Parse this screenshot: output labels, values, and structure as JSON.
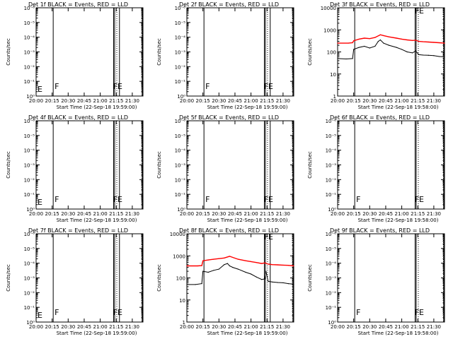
{
  "page": {
    "background": "#ffffff",
    "events_color": "#000000",
    "lld_color": "#ff0000"
  },
  "panels": [
    {
      "title": "Det 1f BLACK = Events, RED = LLD",
      "ylabel": "Counts/sec",
      "xlabel": "Start Time (22-Sep-18 19:59:00)",
      "yticks": [
        "10⁰",
        "10⁻¹",
        "10⁻²",
        "10⁻³",
        "10⁻⁴",
        "10⁻⁵",
        "10⁻⁶"
      ],
      "log_range": [
        0,
        -6
      ],
      "has_data": false,
      "markers": [
        "E",
        "F",
        "FE"
      ]
    },
    {
      "title": "Det 2f BLACK = Events, RED = LLD",
      "ylabel": "Counts/sec",
      "xlabel": "Start Time (22-Sep-18 19:59:00)",
      "yticks": [
        "10⁰",
        "10⁻¹",
        "10⁻²",
        "10⁻³",
        "10⁻⁴",
        "10⁻⁵",
        "10⁻⁶"
      ],
      "log_range": [
        0,
        -6
      ],
      "has_data": false,
      "markers": [
        "F",
        "FE"
      ]
    },
    {
      "title": "Det 3f BLACK = Events, RED = LLD",
      "ylabel": "Counts/sec",
      "xlabel": "Start Time (22-Sep-18 19:58:00)",
      "yticks": [
        "1",
        "10",
        "100",
        "1000",
        "10000"
      ],
      "log_range": [
        0,
        4
      ],
      "has_data": true,
      "markers": [
        "FE"
      ]
    },
    {
      "title": "Det 4f BLACK = Events, RED = LLD",
      "ylabel": "Counts/sec",
      "xlabel": "Start Time (22-Sep-18 19:59:00)",
      "yticks": [
        "10⁰",
        "10⁻¹",
        "10⁻²",
        "10⁻³",
        "10⁻⁴",
        "10⁻⁵",
        "10⁻⁶"
      ],
      "log_range": [
        0,
        -6
      ],
      "has_data": false,
      "markers": [
        "E",
        "F",
        "FE"
      ]
    },
    {
      "title": "Det 5f BLACK = Events, RED = LLD",
      "ylabel": "Counts/sec",
      "xlabel": "Start Time (22-Sep-18 19:59:00)",
      "yticks": [
        "10⁰",
        "10⁻¹",
        "10⁻²",
        "10⁻³",
        "10⁻⁴",
        "10⁻⁵",
        "10⁻⁶"
      ],
      "log_range": [
        0,
        -6
      ],
      "has_data": false,
      "markers": [
        "F",
        "FE"
      ]
    },
    {
      "title": "Det 6f BLACK = Events, RED = LLD",
      "ylabel": "Counts/sec",
      "xlabel": "Start Time (22-Sep-18 19:58:00)",
      "yticks": [
        "10⁰",
        "10⁻¹",
        "10⁻²",
        "10⁻³",
        "10⁻⁴",
        "10⁻⁵",
        "10⁻⁶"
      ],
      "log_range": [
        0,
        -6
      ],
      "has_data": false,
      "markers": [
        "F",
        "FE"
      ]
    },
    {
      "title": "Det 7f BLACK = Events, RED = LLD",
      "ylabel": "Counts/sec",
      "xlabel": "Start Time (22-Sep-18 19:59:00)",
      "yticks": [
        "10⁰",
        "10⁻¹",
        "10⁻²",
        "10⁻³",
        "10⁻⁴",
        "10⁻⁵",
        "10⁻⁶"
      ],
      "log_range": [
        0,
        -6
      ],
      "has_data": false,
      "markers": [
        "E",
        "F",
        "FE"
      ]
    },
    {
      "title": "Det 8f BLACK = Events, RED = LLD",
      "ylabel": "Counts/sec",
      "xlabel": "Start Time (22-Sep-18 19:59:00)",
      "yticks": [
        "1",
        "10",
        "100",
        "1000",
        "10000"
      ],
      "log_range": [
        0,
        4
      ],
      "has_data": true,
      "markers": [
        "FE"
      ]
    },
    {
      "title": "Det 9f BLACK = Events, RED = LLD",
      "ylabel": "Counts/sec",
      "xlabel": "Start Time (22-Sep-18 19:58:00)",
      "yticks": [
        "10⁰",
        "10⁻¹",
        "10⁻²",
        "10⁻³",
        "10⁻⁴",
        "10⁻⁵",
        "10⁻⁶"
      ],
      "log_range": [
        0,
        -6
      ],
      "has_data": false,
      "markers": [
        "F",
        "FE"
      ]
    }
  ],
  "chart_data": [
    {
      "type": "line",
      "title": "Det 1f BLACK = Events, RED = LLD",
      "xlabel": "Start Time (22-Sep-18 19:59:00)",
      "ylabel": "Counts/sec",
      "x_ticks": [
        "20:00",
        "20:15",
        "20:30",
        "20:45",
        "21:00",
        "21:15",
        "21:30"
      ],
      "xlim": [
        "20:00",
        "21:40"
      ],
      "ylim": [
        1,
        1e-06
      ],
      "y_scale": "log",
      "series": []
    },
    {
      "type": "line",
      "title": "Det 2f BLACK = Events, RED = LLD",
      "xlabel": "Start Time (22-Sep-18 19:59:00)",
      "ylabel": "Counts/sec",
      "x_ticks": [
        "20:00",
        "20:15",
        "20:30",
        "20:45",
        "21:00",
        "21:15",
        "21:30"
      ],
      "xlim": [
        "20:00",
        "21:40"
      ],
      "ylim": [
        1,
        1e-06
      ],
      "y_scale": "log",
      "series": []
    },
    {
      "type": "line",
      "title": "Det 3f BLACK = Events, RED = LLD",
      "xlabel": "Start Time (22-Sep-18 19:58:00)",
      "ylabel": "Counts/sec",
      "x_ticks": [
        "20:00",
        "20:15",
        "20:30",
        "20:45",
        "21:00",
        "21:15",
        "21:30"
      ],
      "xlim": [
        "20:00",
        "21:40"
      ],
      "ylim": [
        1,
        10000
      ],
      "y_scale": "log",
      "series": [
        {
          "color": "#000000",
          "x": [
            "20:00",
            "20:08",
            "20:14",
            "20:15",
            "20:20",
            "20:25",
            "20:30",
            "20:35",
            "20:38",
            "20:40",
            "20:43",
            "20:48",
            "20:55",
            "21:00",
            "21:05",
            "21:10",
            "21:13",
            "21:16",
            "21:20",
            "21:25",
            "21:30",
            "21:35",
            "21:40"
          ],
          "values": [
            50,
            48,
            50,
            130,
            160,
            180,
            150,
            180,
            300,
            350,
            250,
            200,
            160,
            130,
            100,
            90,
            110,
            75,
            72,
            70,
            68,
            62,
            60
          ]
        },
        {
          "color": "#ff0000",
          "x": [
            "20:00",
            "20:10",
            "20:14",
            "20:15",
            "20:20",
            "20:25",
            "20:30",
            "20:35",
            "20:40",
            "20:43",
            "20:48",
            "20:55",
            "21:00",
            "21:05",
            "21:10",
            "21:13",
            "21:16",
            "21:20",
            "21:25",
            "21:30",
            "21:35",
            "21:40"
          ],
          "values": [
            250,
            250,
            260,
            320,
            380,
            420,
            400,
            450,
            600,
            550,
            480,
            420,
            380,
            350,
            330,
            340,
            300,
            290,
            280,
            270,
            260,
            250
          ]
        }
      ]
    },
    {
      "type": "line",
      "title": "Det 4f BLACK = Events, RED = LLD",
      "xlabel": "Start Time (22-Sep-18 19:59:00)",
      "ylabel": "Counts/sec",
      "x_ticks": [
        "20:00",
        "20:15",
        "20:30",
        "20:45",
        "21:00",
        "21:15",
        "21:30"
      ],
      "xlim": [
        "20:00",
        "21:40"
      ],
      "ylim": [
        1,
        1e-06
      ],
      "y_scale": "log",
      "series": []
    },
    {
      "type": "line",
      "title": "Det 5f BLACK = Events, RED = LLD",
      "xlabel": "Start Time (22-Sep-18 19:59:00)",
      "ylabel": "Counts/sec",
      "x_ticks": [
        "20:00",
        "20:15",
        "20:30",
        "20:45",
        "21:00",
        "21:15",
        "21:30"
      ],
      "xlim": [
        "20:00",
        "21:40"
      ],
      "ylim": [
        1,
        1e-06
      ],
      "y_scale": "log",
      "series": []
    },
    {
      "type": "line",
      "title": "Det 6f BLACK = Events, RED = LLD",
      "xlabel": "Start Time (22-Sep-18 19:58:00)",
      "ylabel": "Counts/sec",
      "x_ticks": [
        "20:00",
        "20:15",
        "20:30",
        "20:45",
        "21:00",
        "21:15",
        "21:30"
      ],
      "xlim": [
        "20:00",
        "21:40"
      ],
      "ylim": [
        1,
        1e-06
      ],
      "y_scale": "log",
      "series": []
    },
    {
      "type": "line",
      "title": "Det 7f BLACK = Events, RED = LLD",
      "xlabel": "Start Time (22-Sep-18 19:59:00)",
      "ylabel": "Counts/sec",
      "x_ticks": [
        "20:00",
        "20:15",
        "20:30",
        "20:45",
        "21:00",
        "21:15",
        "21:30"
      ],
      "xlim": [
        "20:00",
        "21:40"
      ],
      "ylim": [
        1,
        1e-06
      ],
      "y_scale": "log",
      "series": []
    },
    {
      "type": "line",
      "title": "Det 8f BLACK = Events, RED = LLD",
      "xlabel": "Start Time (22-Sep-18 19:59:00)",
      "ylabel": "Counts/sec",
      "x_ticks": [
        "20:00",
        "20:15",
        "20:30",
        "20:45",
        "21:00",
        "21:15",
        "21:30"
      ],
      "xlim": [
        "20:00",
        "21:40"
      ],
      "ylim": [
        1,
        10000
      ],
      "y_scale": "log",
      "series": [
        {
          "color": "#000000",
          "x": [
            "20:00",
            "20:08",
            "20:14",
            "20:15",
            "20:20",
            "20:25",
            "20:30",
            "20:35",
            "20:38",
            "20:40",
            "20:43",
            "20:48",
            "20:55",
            "21:00",
            "21:05",
            "21:10",
            "21:13",
            "21:14",
            "21:16",
            "21:20",
            "21:25",
            "21:30",
            "21:35",
            "21:40"
          ],
          "values": [
            50,
            50,
            55,
            200,
            180,
            220,
            250,
            400,
            450,
            350,
            300,
            250,
            180,
            150,
            110,
            85,
            90,
            200,
            70,
            65,
            62,
            60,
            55,
            52
          ]
        },
        {
          "color": "#ff0000",
          "x": [
            "20:00",
            "20:10",
            "20:14",
            "20:15",
            "20:20",
            "20:25",
            "20:30",
            "20:35",
            "20:40",
            "20:43",
            "20:48",
            "20:55",
            "21:00",
            "21:05",
            "21:10",
            "21:13",
            "21:16",
            "21:20",
            "21:25",
            "21:30",
            "21:35",
            "21:40"
          ],
          "values": [
            350,
            350,
            360,
            600,
            650,
            700,
            750,
            800,
            950,
            850,
            700,
            600,
            550,
            500,
            450,
            480,
            420,
            400,
            390,
            380,
            370,
            350
          ]
        }
      ]
    },
    {
      "type": "line",
      "title": "Det 9f BLACK = Events, RED = LLD",
      "xlabel": "Start Time (22-Sep-18 19:58:00)",
      "ylabel": "Counts/sec",
      "x_ticks": [
        "20:00",
        "20:15",
        "20:30",
        "20:45",
        "21:00",
        "21:15",
        "21:30"
      ],
      "xlim": [
        "20:00",
        "21:40"
      ],
      "ylim": [
        1,
        1e-06
      ],
      "y_scale": "log",
      "series": []
    }
  ]
}
